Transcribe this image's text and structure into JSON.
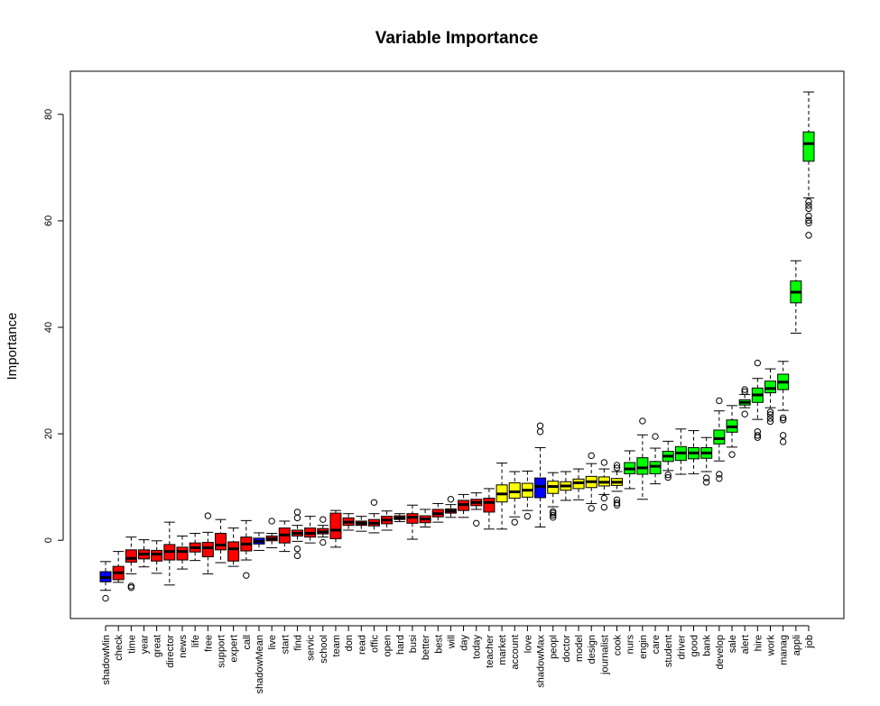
{
  "chart_data": {
    "type": "boxplot",
    "title": "Variable Importance",
    "xlabel": "",
    "ylabel": "Importance",
    "ylim": [
      -14.7,
      88.1
    ],
    "yticks": [
      0,
      20,
      40,
      60,
      80
    ],
    "grid": false,
    "legend": "none",
    "colors": {
      "shadow": "#0000ff",
      "rejected": "#ff0000",
      "tentative": "#ffff00",
      "confirmed": "#00ff00"
    },
    "boxes": [
      {
        "label": "shadowMin",
        "status": "shadow",
        "q1": -7.8,
        "median": -7.0,
        "q3": -5.9,
        "low": -9.4,
        "high": -4.0,
        "outliers": [
          -10.9
        ]
      },
      {
        "label": "check",
        "status": "rejected",
        "q1": -7.4,
        "median": -6.1,
        "q3": -4.9,
        "low": -7.9,
        "high": -2.1,
        "outliers": []
      },
      {
        "label": "time",
        "status": "rejected",
        "q1": -4.1,
        "median": -3.4,
        "q3": -1.8,
        "low": -6.3,
        "high": 0.6,
        "outliers": [
          -8.6,
          -8.9
        ]
      },
      {
        "label": "year",
        "status": "rejected",
        "q1": -3.5,
        "median": -2.6,
        "q3": -1.8,
        "low": -5.0,
        "high": 0.1,
        "outliers": []
      },
      {
        "label": "great",
        "status": "rejected",
        "q1": -3.9,
        "median": -2.6,
        "q3": -1.9,
        "low": -6.2,
        "high": -0.1,
        "outliers": []
      },
      {
        "label": "director",
        "status": "rejected",
        "q1": -3.7,
        "median": -2.1,
        "q3": -0.8,
        "low": -8.4,
        "high": 3.4,
        "outliers": []
      },
      {
        "label": "news",
        "status": "rejected",
        "q1": -3.7,
        "median": -2.1,
        "q3": -1.3,
        "low": -5.4,
        "high": 0.8,
        "outliers": []
      },
      {
        "label": "life",
        "status": "rejected",
        "q1": -2.2,
        "median": -1.4,
        "q3": -0.5,
        "low": -3.8,
        "high": 1.3,
        "outliers": []
      },
      {
        "label": "free",
        "status": "rejected",
        "q1": -3.1,
        "median": -1.4,
        "q3": -0.4,
        "low": -6.3,
        "high": 1.5,
        "outliers": [
          4.6
        ]
      },
      {
        "label": "support",
        "status": "rejected",
        "q1": -1.8,
        "median": -0.9,
        "q3": 1.3,
        "low": -4.2,
        "high": 3.9,
        "outliers": []
      },
      {
        "label": "expert",
        "status": "rejected",
        "q1": -3.9,
        "median": -1.6,
        "q3": -0.3,
        "low": -4.9,
        "high": 2.3,
        "outliers": []
      },
      {
        "label": "call",
        "status": "rejected",
        "q1": -2.0,
        "median": -0.7,
        "q3": 0.6,
        "low": -3.7,
        "high": 3.7,
        "outliers": [
          -6.6
        ]
      },
      {
        "label": "shadowMean",
        "status": "shadow",
        "q1": -0.7,
        "median": -0.2,
        "q3": 0.4,
        "low": -1.9,
        "high": 1.4,
        "outliers": []
      },
      {
        "label": "live",
        "status": "rejected",
        "q1": -0.1,
        "median": 0.3,
        "q3": 0.8,
        "low": -1.4,
        "high": 1.3,
        "outliers": [
          3.6
        ]
      },
      {
        "label": "start",
        "status": "rejected",
        "q1": -0.5,
        "median": 1.0,
        "q3": 2.3,
        "low": -2.1,
        "high": 3.6,
        "outliers": []
      },
      {
        "label": "find",
        "status": "rejected",
        "q1": 0.8,
        "median": 1.3,
        "q3": 1.9,
        "low": -0.2,
        "high": 2.8,
        "outliers": [
          5.3,
          4.2,
          -1.6,
          -2.9
        ]
      },
      {
        "label": "servic",
        "status": "rejected",
        "q1": 0.6,
        "median": 1.3,
        "q3": 2.3,
        "low": -0.5,
        "high": 4.5,
        "outliers": []
      },
      {
        "label": "school",
        "status": "rejected",
        "q1": 1.2,
        "median": 1.6,
        "q3": 2.2,
        "low": 0.6,
        "high": 2.8,
        "outliers": [
          3.9,
          -0.4
        ]
      },
      {
        "label": "team",
        "status": "rejected",
        "q1": 0.3,
        "median": 1.9,
        "q3": 5.1,
        "low": -1.3,
        "high": 5.6,
        "outliers": []
      },
      {
        "label": "don",
        "status": "rejected",
        "q1": 2.8,
        "median": 3.4,
        "q3": 4.2,
        "low": 1.9,
        "high": 5.0,
        "outliers": []
      },
      {
        "label": "read",
        "status": "rejected",
        "q1": 2.8,
        "median": 3.2,
        "q3": 3.6,
        "low": 1.7,
        "high": 4.5,
        "outliers": []
      },
      {
        "label": "offic",
        "status": "rejected",
        "q1": 2.7,
        "median": 3.2,
        "q3": 3.9,
        "low": 1.4,
        "high": 5.0,
        "outliers": [
          7.1
        ]
      },
      {
        "label": "open",
        "status": "rejected",
        "q1": 3.1,
        "median": 3.8,
        "q3": 4.5,
        "low": 1.9,
        "high": 5.5,
        "outliers": []
      },
      {
        "label": "hard",
        "status": "rejected",
        "q1": 3.9,
        "median": 4.2,
        "q3": 4.6,
        "low": 3.5,
        "high": 5.0,
        "outliers": []
      },
      {
        "label": "busi",
        "status": "rejected",
        "q1": 3.2,
        "median": 4.3,
        "q3": 5.0,
        "low": 0.2,
        "high": 6.6,
        "outliers": []
      },
      {
        "label": "better",
        "status": "rejected",
        "q1": 3.3,
        "median": 4.0,
        "q3": 4.6,
        "low": 2.5,
        "high": 5.8,
        "outliers": []
      },
      {
        "label": "best",
        "status": "rejected",
        "q1": 4.4,
        "median": 5.0,
        "q3": 5.8,
        "low": 3.4,
        "high": 6.9,
        "outliers": []
      },
      {
        "label": "will",
        "status": "rejected",
        "q1": 5.1,
        "median": 5.5,
        "q3": 5.9,
        "low": 4.3,
        "high": 6.7,
        "outliers": [
          7.7
        ]
      },
      {
        "label": "day",
        "status": "rejected",
        "q1": 5.6,
        "median": 6.7,
        "q3": 7.5,
        "low": 4.3,
        "high": 8.6,
        "outliers": []
      },
      {
        "label": "today",
        "status": "rejected",
        "q1": 6.5,
        "median": 7.1,
        "q3": 7.7,
        "low": 5.8,
        "high": 8.9,
        "outliers": [
          3.2
        ]
      },
      {
        "label": "teacher",
        "status": "rejected",
        "q1": 5.3,
        "median": 7.1,
        "q3": 7.9,
        "low": 2.1,
        "high": 9.7,
        "outliers": []
      },
      {
        "label": "market",
        "status": "tentative",
        "q1": 7.2,
        "median": 8.7,
        "q3": 10.4,
        "low": 2.1,
        "high": 14.5,
        "outliers": []
      },
      {
        "label": "account",
        "status": "tentative",
        "q1": 7.9,
        "median": 9.1,
        "q3": 10.8,
        "low": 4.4,
        "high": 12.9,
        "outliers": [
          3.4
        ]
      },
      {
        "label": "love",
        "status": "tentative",
        "q1": 8.1,
        "median": 9.4,
        "q3": 10.7,
        "low": 5.6,
        "high": 13.0,
        "outliers": [
          4.5
        ]
      },
      {
        "label": "shadowMax",
        "status": "shadow",
        "q1": 8.0,
        "median": 10.1,
        "q3": 11.7,
        "low": 2.5,
        "high": 17.4,
        "outliers": [
          21.5,
          20.4
        ]
      },
      {
        "label": "peopl",
        "status": "tentative",
        "q1": 8.8,
        "median": 10.1,
        "q3": 11.1,
        "low": 6.3,
        "high": 12.7,
        "outliers": [
          5.4,
          5.1,
          4.7,
          4.3
        ]
      },
      {
        "label": "doctor",
        "status": "tentative",
        "q1": 9.4,
        "median": 10.2,
        "q3": 11.0,
        "low": 7.5,
        "high": 12.9,
        "outliers": []
      },
      {
        "label": "model",
        "status": "tentative",
        "q1": 9.7,
        "median": 10.8,
        "q3": 11.5,
        "low": 7.6,
        "high": 13.4,
        "outliers": []
      },
      {
        "label": "design",
        "status": "tentative",
        "q1": 9.9,
        "median": 11.0,
        "q3": 12.0,
        "low": 6.9,
        "high": 14.4,
        "outliers": [
          15.9,
          6.0
        ]
      },
      {
        "label": "journalist",
        "status": "tentative",
        "q1": 10.2,
        "median": 10.9,
        "q3": 11.9,
        "low": 8.6,
        "high": 13.4,
        "outliers": [
          14.6,
          7.9,
          6.2
        ]
      },
      {
        "label": "cook",
        "status": "tentative",
        "q1": 10.3,
        "median": 10.9,
        "q3": 11.6,
        "low": 9.2,
        "high": 12.9,
        "outliers": [
          14.1,
          13.6,
          7.6,
          7.0,
          6.6
        ]
      },
      {
        "label": "nurs",
        "status": "confirmed",
        "q1": 12.5,
        "median": 13.4,
        "q3": 14.6,
        "low": 9.7,
        "high": 16.8,
        "outliers": []
      },
      {
        "label": "engin",
        "status": "confirmed",
        "q1": 12.4,
        "median": 13.6,
        "q3": 15.5,
        "low": 7.7,
        "high": 19.8,
        "outliers": [
          22.4
        ]
      },
      {
        "label": "care",
        "status": "confirmed",
        "q1": 12.5,
        "median": 13.9,
        "q3": 14.8,
        "low": 10.6,
        "high": 17.3,
        "outliers": [
          19.5
        ]
      },
      {
        "label": "student",
        "status": "confirmed",
        "q1": 14.8,
        "median": 15.8,
        "q3": 16.7,
        "low": 13.1,
        "high": 18.6,
        "outliers": [
          12.3,
          11.8
        ]
      },
      {
        "label": "driver",
        "status": "confirmed",
        "q1": 15.0,
        "median": 16.4,
        "q3": 17.6,
        "low": 12.4,
        "high": 20.9,
        "outliers": []
      },
      {
        "label": "good",
        "status": "confirmed",
        "q1": 15.3,
        "median": 16.4,
        "q3": 17.4,
        "low": 12.5,
        "high": 20.6,
        "outliers": []
      },
      {
        "label": "bank",
        "status": "confirmed",
        "q1": 15.4,
        "median": 16.4,
        "q3": 17.4,
        "low": 12.9,
        "high": 19.3,
        "outliers": [
          11.7,
          10.9
        ]
      },
      {
        "label": "develop",
        "status": "confirmed",
        "q1": 18.1,
        "median": 19.1,
        "q3": 20.7,
        "low": 14.9,
        "high": 24.3,
        "outliers": [
          26.2,
          12.4,
          11.6
        ]
      },
      {
        "label": "sale",
        "status": "confirmed",
        "q1": 20.3,
        "median": 21.3,
        "q3": 22.6,
        "low": 17.5,
        "high": 25.3,
        "outliers": [
          16.1
        ]
      },
      {
        "label": "alert",
        "status": "confirmed",
        "q1": 25.4,
        "median": 25.9,
        "q3": 26.4,
        "low": 24.9,
        "high": 27.4,
        "outliers": [
          28.3,
          27.9,
          23.7
        ]
      },
      {
        "label": "hire",
        "status": "confirmed",
        "q1": 25.9,
        "median": 27.3,
        "q3": 28.6,
        "low": 22.7,
        "high": 30.4,
        "outliers": [
          33.3,
          20.4,
          19.7,
          19.3
        ]
      },
      {
        "label": "work",
        "status": "confirmed",
        "q1": 27.7,
        "median": 28.5,
        "q3": 29.9,
        "low": 24.9,
        "high": 32.2,
        "outliers": [
          24.1,
          23.6,
          22.9,
          22.3
        ]
      },
      {
        "label": "manag",
        "status": "confirmed",
        "q1": 28.3,
        "median": 29.7,
        "q3": 31.2,
        "low": 24.4,
        "high": 33.6,
        "outliers": [
          23.0,
          22.6,
          19.7,
          18.5
        ]
      },
      {
        "label": "appli",
        "status": "confirmed",
        "q1": 44.6,
        "median": 46.6,
        "q3": 48.7,
        "low": 38.9,
        "high": 52.5,
        "outliers": []
      },
      {
        "label": "job",
        "status": "confirmed",
        "q1": 71.2,
        "median": 74.5,
        "q3": 76.7,
        "low": 64.3,
        "high": 84.2,
        "outliers": [
          63.6,
          62.9,
          62.3,
          60.9,
          60.1,
          59.6,
          57.3
        ]
      }
    ]
  }
}
